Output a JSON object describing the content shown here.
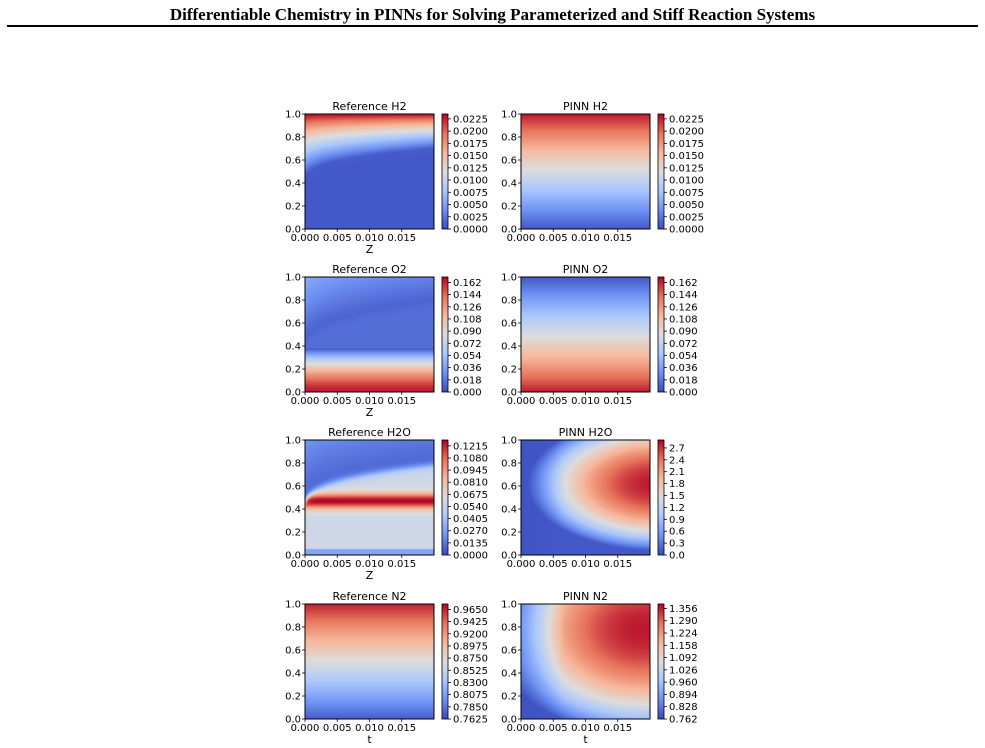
{
  "page": {
    "title": "Differentiable Chemistry in PINNs for Solving Parameterized and Stiff Reaction Systems"
  },
  "colormap": {
    "name": "coolwarm",
    "stops": [
      "#3b4cc0",
      "#6f92f3",
      "#aac7fd",
      "#dddddd",
      "#f7b89c",
      "#e7745b",
      "#b40426"
    ]
  },
  "chart_data": [
    {
      "type": "heatmap",
      "title": "Reference H2",
      "pattern": "ref_h2",
      "xlabel": "Z",
      "xlim": [
        0,
        0.02
      ],
      "ylim": [
        0,
        1
      ],
      "xticks": [
        "0.000",
        "0.005",
        "0.010",
        "0.015"
      ],
      "yticks": [
        "0.0",
        "0.2",
        "0.4",
        "0.6",
        "0.8",
        "1.0"
      ],
      "colorbar": {
        "min": 0,
        "max": 0.0235,
        "ticks": [
          "0.0000",
          "0.0025",
          "0.0050",
          "0.0075",
          "0.0100",
          "0.0125",
          "0.0150",
          "0.0175",
          "0.0200",
          "0.0225"
        ]
      }
    },
    {
      "type": "heatmap",
      "title": "PINN H2",
      "pattern": "pinn_h2",
      "xlabel": "",
      "xlim": [
        0,
        0.02
      ],
      "ylim": [
        0,
        1
      ],
      "xticks": [
        "0.000",
        "0.005",
        "0.010",
        "0.015"
      ],
      "yticks": [
        "0.0",
        "0.2",
        "0.4",
        "0.6",
        "0.8",
        "1.0"
      ],
      "colorbar": {
        "min": 0,
        "max": 0.0235,
        "ticks": [
          "0.0000",
          "0.0025",
          "0.0050",
          "0.0075",
          "0.0100",
          "0.0125",
          "0.0150",
          "0.0175",
          "0.0200",
          "0.0225"
        ]
      }
    },
    {
      "type": "heatmap",
      "title": "Reference O2",
      "pattern": "ref_o2",
      "xlabel": "Z",
      "xlim": [
        0,
        0.02
      ],
      "ylim": [
        0,
        1
      ],
      "xticks": [
        "0.000",
        "0.005",
        "0.010",
        "0.015"
      ],
      "yticks": [
        "0.0",
        "0.2",
        "0.4",
        "0.6",
        "0.8",
        "1.0"
      ],
      "colorbar": {
        "min": 0,
        "max": 0.17,
        "ticks": [
          "0.000",
          "0.018",
          "0.036",
          "0.054",
          "0.072",
          "0.090",
          "0.108",
          "0.126",
          "0.144",
          "0.162"
        ]
      }
    },
    {
      "type": "heatmap",
      "title": "PINN O2",
      "pattern": "pinn_o2",
      "xlabel": "",
      "xlim": [
        0,
        0.02
      ],
      "ylim": [
        0,
        1
      ],
      "xticks": [
        "0.000",
        "0.005",
        "0.010",
        "0.015"
      ],
      "yticks": [
        "0.0",
        "0.2",
        "0.4",
        "0.6",
        "0.8",
        "1.0"
      ],
      "colorbar": {
        "min": 0,
        "max": 0.17,
        "ticks": [
          "0.000",
          "0.018",
          "0.036",
          "0.054",
          "0.072",
          "0.090",
          "0.108",
          "0.126",
          "0.144",
          "0.162"
        ]
      }
    },
    {
      "type": "heatmap",
      "title": "Reference H2O",
      "pattern": "ref_h2o",
      "xlabel": "Z",
      "xlim": [
        0,
        0.02
      ],
      "ylim": [
        0,
        1
      ],
      "xticks": [
        "0.000",
        "0.005",
        "0.010",
        "0.015"
      ],
      "yticks": [
        "0.0",
        "0.2",
        "0.4",
        "0.6",
        "0.8",
        "1.0"
      ],
      "colorbar": {
        "min": 0,
        "max": 0.128,
        "ticks": [
          "0.0000",
          "0.0135",
          "0.0270",
          "0.0405",
          "0.0540",
          "0.0675",
          "0.0810",
          "0.0945",
          "0.1080",
          "0.1215"
        ]
      }
    },
    {
      "type": "heatmap",
      "title": "PINN H2O",
      "pattern": "pinn_h2o",
      "xlabel": "",
      "xlim": [
        0,
        0.02
      ],
      "ylim": [
        0,
        1
      ],
      "xticks": [
        "0.000",
        "0.005",
        "0.010",
        "0.015"
      ],
      "yticks": [
        "0.0",
        "0.2",
        "0.4",
        "0.6",
        "0.8",
        "1.0"
      ],
      "colorbar": {
        "min": 0,
        "max": 2.9,
        "ticks": [
          "0.0",
          "0.3",
          "0.6",
          "0.9",
          "1.2",
          "1.5",
          "1.8",
          "2.1",
          "2.4",
          "2.7"
        ]
      }
    },
    {
      "type": "heatmap",
      "title": "Reference N2",
      "pattern": "ref_n2",
      "xlabel": "t",
      "xlim": [
        0,
        0.02
      ],
      "ylim": [
        0,
        1
      ],
      "xticks": [
        "0.000",
        "0.005",
        "0.010",
        "0.015"
      ],
      "yticks": [
        "0.0",
        "0.2",
        "0.4",
        "0.6",
        "0.8",
        "1.0"
      ],
      "colorbar": {
        "min": 0.7625,
        "max": 0.975,
        "ticks": [
          "0.7625",
          "0.7850",
          "0.8075",
          "0.8300",
          "0.8525",
          "0.8750",
          "0.8975",
          "0.9200",
          "0.9425",
          "0.9650"
        ]
      }
    },
    {
      "type": "heatmap",
      "title": "PINN N2",
      "pattern": "pinn_n2",
      "xlabel": "t",
      "xlim": [
        0,
        0.02
      ],
      "ylim": [
        0,
        1
      ],
      "xticks": [
        "0.000",
        "0.005",
        "0.010",
        "0.015"
      ],
      "yticks": [
        "0.0",
        "0.2",
        "0.4",
        "0.6",
        "0.8",
        "1.0"
      ],
      "colorbar": {
        "min": 0.762,
        "max": 1.38,
        "ticks": [
          "0.762",
          "0.828",
          "0.894",
          "0.960",
          "1.026",
          "1.092",
          "1.158",
          "1.224",
          "1.290",
          "1.356"
        ]
      }
    }
  ]
}
